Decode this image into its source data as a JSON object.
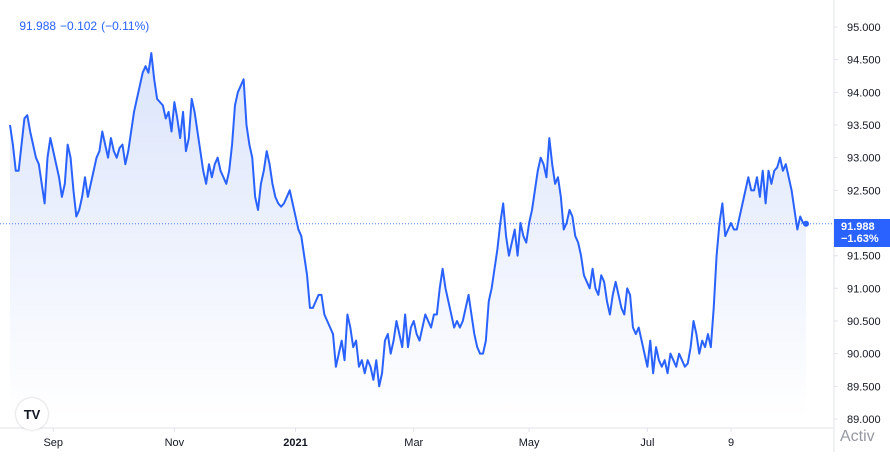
{
  "legend": {
    "price": "91.988",
    "change": "−0.102",
    "change_pct": "(−0.11%)"
  },
  "price_tag": {
    "price": "91.988",
    "change_pct": "−1.63%"
  },
  "logo_text": "TV",
  "watermark": "Activ",
  "colors": {
    "line": "#2962ff",
    "area_top": "#dbe4fb",
    "area_bottom": "#ffffff",
    "axis_text": "#131722",
    "grid": "#e0e3eb",
    "baseline": "#2962ff"
  },
  "chart_data": {
    "type": "area",
    "y_axis_position": "right",
    "ylim": [
      89.0,
      95.0
    ],
    "y_ticks": [
      "95.000",
      "94.500",
      "94.000",
      "93.500",
      "93.000",
      "92.500",
      "91.500",
      "91.000",
      "90.500",
      "90.000",
      "89.500",
      "89.000"
    ],
    "x_ticks": [
      "Sep",
      "Nov",
      "2021",
      "Mar",
      "May",
      "Jul",
      "9"
    ],
    "x_tick_index": [
      15,
      57,
      99,
      140,
      180,
      221,
      250
    ],
    "x_labels_bold": [
      "2021"
    ],
    "last_value": 91.988,
    "last_change_pct": "−1.63%",
    "values": [
      93.5,
      93.2,
      92.8,
      92.8,
      93.2,
      93.6,
      93.65,
      93.4,
      93.2,
      93.0,
      92.9,
      92.6,
      92.3,
      93.0,
      93.3,
      93.1,
      92.9,
      92.7,
      92.4,
      92.6,
      93.2,
      93.0,
      92.5,
      92.1,
      92.2,
      92.4,
      92.7,
      92.4,
      92.6,
      92.8,
      93.0,
      93.1,
      93.4,
      93.2,
      93.0,
      93.3,
      93.1,
      93.0,
      93.15,
      93.2,
      92.9,
      93.1,
      93.4,
      93.7,
      93.9,
      94.1,
      94.3,
      94.4,
      94.3,
      94.6,
      94.2,
      93.9,
      93.85,
      93.8,
      93.6,
      93.7,
      93.4,
      93.85,
      93.6,
      93.3,
      93.7,
      93.1,
      93.3,
      93.9,
      93.7,
      93.4,
      93.1,
      92.8,
      92.6,
      92.9,
      92.7,
      92.9,
      93.0,
      92.8,
      92.7,
      92.6,
      92.8,
      93.2,
      93.8,
      94.0,
      94.1,
      94.2,
      93.5,
      93.2,
      93.0,
      92.4,
      92.2,
      92.6,
      92.8,
      93.1,
      92.9,
      92.6,
      92.4,
      92.3,
      92.25,
      92.3,
      92.4,
      92.5,
      92.3,
      92.1,
      91.9,
      91.8,
      91.5,
      91.2,
      90.7,
      90.7,
      90.8,
      90.9,
      90.9,
      90.6,
      90.5,
      90.4,
      90.3,
      89.8,
      90.0,
      90.2,
      89.9,
      90.6,
      90.4,
      90.1,
      90.2,
      89.8,
      89.9,
      89.7,
      89.9,
      89.8,
      89.6,
      89.9,
      89.5,
      89.7,
      90.2,
      90.3,
      90.0,
      90.2,
      90.5,
      90.3,
      90.1,
      90.6,
      90.1,
      90.4,
      90.5,
      90.3,
      90.2,
      90.4,
      90.6,
      90.5,
      90.4,
      90.6,
      90.6,
      91.0,
      91.3,
      91.0,
      90.8,
      90.6,
      90.4,
      90.5,
      90.4,
      90.5,
      90.7,
      90.9,
      90.6,
      90.3,
      90.1,
      90.0,
      90.0,
      90.2,
      90.8,
      91.0,
      91.3,
      91.6,
      92.0,
      92.3,
      91.8,
      91.5,
      91.7,
      91.9,
      91.5,
      92.0,
      91.8,
      91.7,
      92.0,
      92.2,
      92.5,
      92.8,
      93.0,
      92.9,
      92.7,
      93.3,
      92.9,
      92.6,
      92.7,
      92.4,
      91.9,
      92.0,
      92.2,
      92.1,
      91.8,
      91.7,
      91.5,
      91.2,
      91.1,
      91.0,
      91.3,
      91.0,
      90.9,
      91.2,
      91.1,
      90.8,
      90.6,
      90.9,
      91.1,
      90.9,
      90.7,
      90.6,
      91.0,
      90.9,
      90.4,
      90.3,
      90.4,
      90.2,
      90.0,
      89.8,
      90.2,
      89.7,
      90.1,
      89.9,
      89.8,
      89.9,
      89.7,
      90.0,
      89.9,
      89.8,
      90.0,
      89.9,
      89.8,
      89.85,
      90.1,
      90.5,
      90.3,
      90.0,
      90.2,
      90.1,
      90.3,
      90.1,
      90.7,
      91.5,
      92.0,
      92.3,
      91.8,
      91.9,
      92.0,
      91.9,
      91.9,
      92.1,
      92.3,
      92.5,
      92.7,
      92.5,
      92.5,
      92.7,
      92.4,
      92.8,
      92.3,
      92.8,
      92.6,
      92.8,
      92.85,
      93.0,
      92.8,
      92.9,
      92.7,
      92.5,
      92.2,
      91.9,
      92.1,
      92.0,
      91.988
    ]
  }
}
